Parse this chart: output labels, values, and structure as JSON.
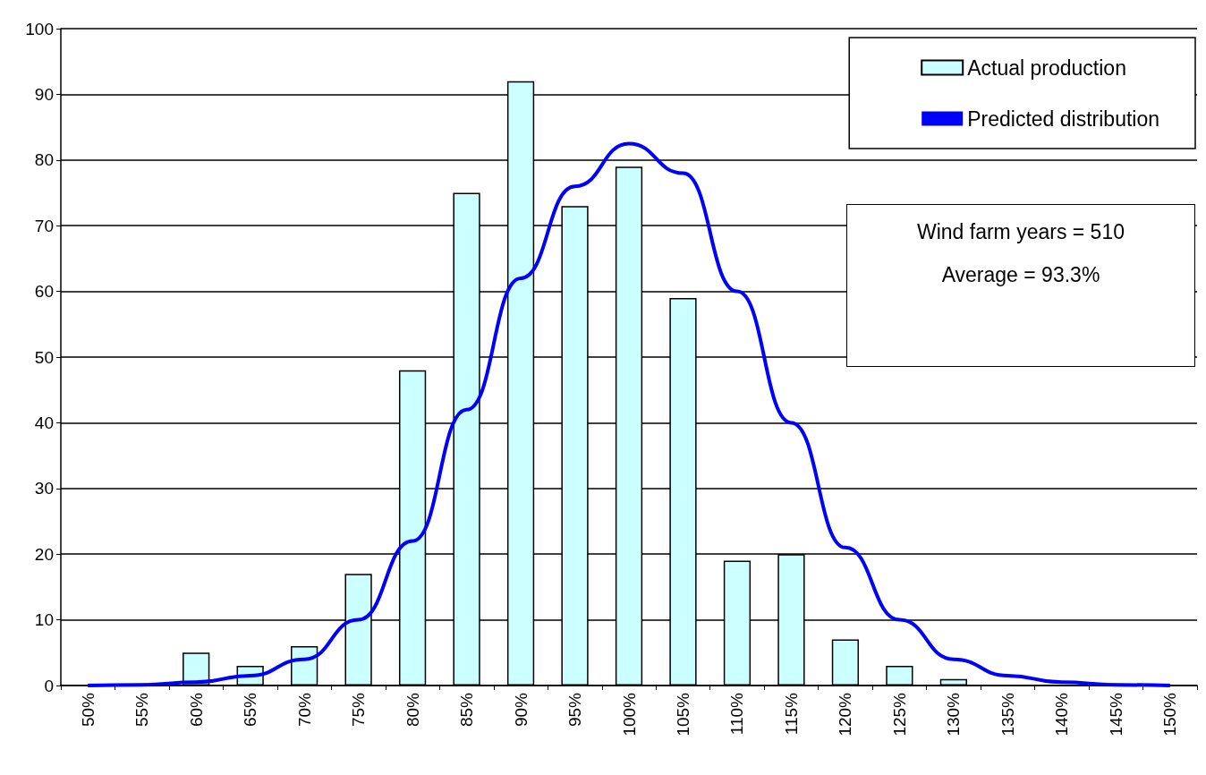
{
  "chart_data": {
    "type": "bar",
    "categories": [
      "50%",
      "55%",
      "60%",
      "65%",
      "70%",
      "75%",
      "80%",
      "85%",
      "90%",
      "95%",
      "100%",
      "105%",
      "110%",
      "115%",
      "120%",
      "125%",
      "130%",
      "135%",
      "140%",
      "145%",
      "150%"
    ],
    "series": [
      {
        "name": "Actual production",
        "color": "#ccffff",
        "values": [
          0,
          0,
          5,
          3,
          6,
          17,
          48,
          75,
          92,
          73,
          79,
          59,
          19,
          20,
          7,
          3,
          1,
          0,
          0,
          0,
          0
        ]
      },
      {
        "name": "Predicted distribution",
        "type": "line",
        "color": "#0000ff",
        "values": [
          0,
          0.1,
          0.5,
          1.5,
          4,
          10,
          22,
          42,
          62,
          76,
          82.5,
          78,
          60,
          40,
          21,
          10,
          4,
          1.5,
          0.5,
          0.1,
          0
        ]
      }
    ],
    "ylim": [
      0,
      100
    ],
    "yticks": [
      0,
      10,
      20,
      30,
      40,
      50,
      60,
      70,
      80,
      90,
      100
    ],
    "grid": "y",
    "legend": "top right",
    "marker": "none",
    "annotations": [
      "Wind farm years = 510",
      "Average = 93.3%"
    ]
  }
}
